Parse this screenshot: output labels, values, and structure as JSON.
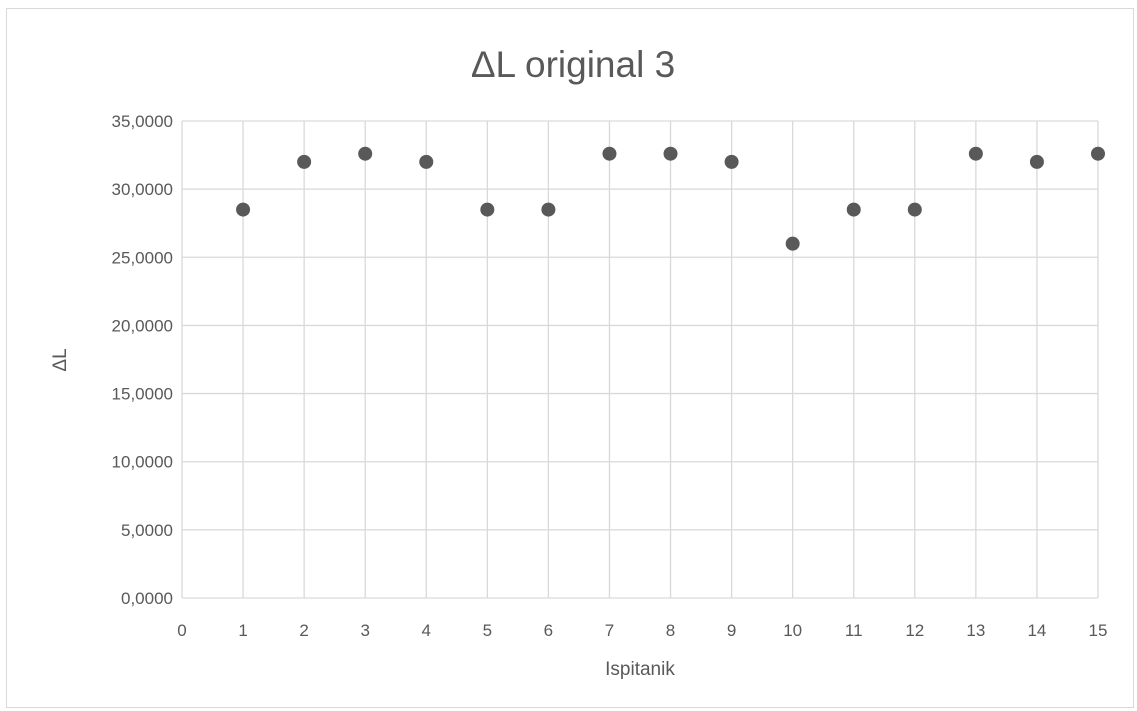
{
  "chart_data": {
    "type": "scatter",
    "title": "ΔL original 3",
    "xlabel": "Ispitanik",
    "ylabel": "ΔL",
    "xlim": [
      0,
      15
    ],
    "ylim": [
      0,
      35
    ],
    "x_ticks": [
      "0",
      "1",
      "2",
      "3",
      "4",
      "5",
      "6",
      "7",
      "8",
      "9",
      "10",
      "11",
      "12",
      "13",
      "14",
      "15"
    ],
    "y_ticks": [
      "0,0000",
      "5,0000",
      "10,0000",
      "15,0000",
      "20,0000",
      "25,0000",
      "30,0000",
      "35,0000"
    ],
    "grid": true,
    "legend": "none",
    "series": [
      {
        "x": [
          1,
          2,
          3,
          4,
          5,
          6,
          7,
          8,
          9,
          10,
          11,
          12,
          13,
          14,
          15
        ],
        "y": [
          28.5,
          32.0,
          32.6,
          32.0,
          28.5,
          28.5,
          32.6,
          32.6,
          32.0,
          26.0,
          28.5,
          28.5,
          32.6,
          32.0,
          32.6
        ]
      }
    ]
  },
  "colors": {
    "marker": "#595959",
    "grid": "#d9d9d9",
    "text": "#595959",
    "frame": "#d9d9d9"
  }
}
